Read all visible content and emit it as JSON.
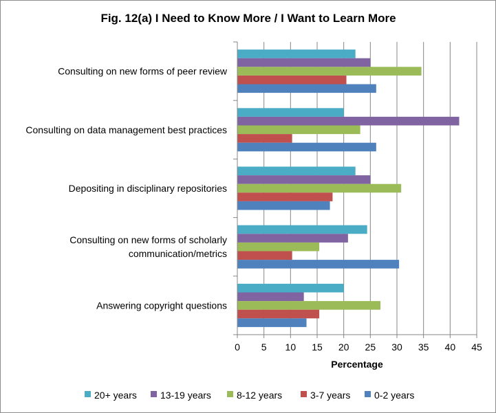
{
  "chart_data": {
    "type": "bar",
    "orientation": "horizontal",
    "title": "Fig. 12(a) I Need to Know More / I Want to Learn More",
    "xlabel": "Percentage",
    "ylabel": "",
    "xlim": [
      0,
      45
    ],
    "x_ticks": [
      "0",
      "5",
      "10",
      "15",
      "20",
      "25",
      "30",
      "35",
      "40",
      "45"
    ],
    "grid": true,
    "legend_position": "bottom",
    "categories": [
      [
        "Consulting on new forms of peer review"
      ],
      [
        "Consulting on data management best practices"
      ],
      [
        "Depositing in disciplinary repositories"
      ],
      [
        "Consulting on new forms of scholarly",
        "communication/metrics"
      ],
      [
        "Answering copyright questions"
      ]
    ],
    "series": [
      {
        "name": "20+ years",
        "color": "#4bacc6",
        "values": [
          22.2,
          20.0,
          22.2,
          24.4,
          20.0
        ]
      },
      {
        "name": "13-19 years",
        "color": "#8064a2",
        "values": [
          25.0,
          41.7,
          25.0,
          20.8,
          12.5
        ]
      },
      {
        "name": "8-12 years",
        "color": "#9bbb59",
        "values": [
          34.6,
          23.1,
          30.8,
          15.4,
          26.9
        ]
      },
      {
        "name": "3-7 years",
        "color": "#c0504d",
        "values": [
          20.5,
          10.3,
          17.9,
          10.3,
          15.4
        ]
      },
      {
        "name": "0-2 years",
        "color": "#4f81bd",
        "values": [
          26.1,
          26.1,
          17.4,
          30.4,
          13.0
        ]
      }
    ]
  }
}
